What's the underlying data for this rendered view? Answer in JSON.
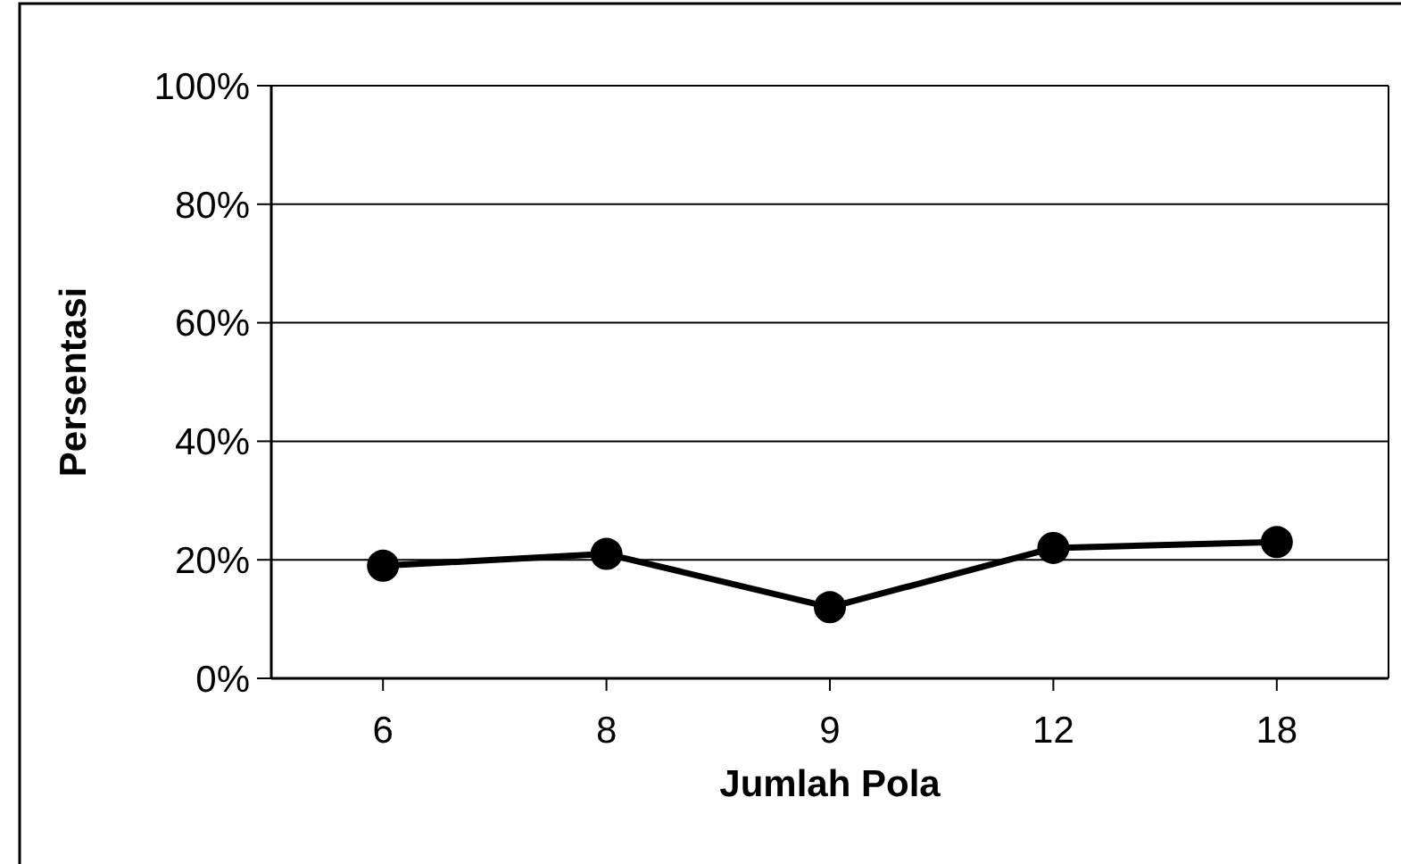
{
  "chart_data": {
    "type": "line",
    "xlabel": "Jumlah Pola",
    "ylabel": "Persentasi",
    "categories": [
      "6",
      "8",
      "9",
      "12",
      "18"
    ],
    "series": [
      {
        "color": "#000000",
        "values": [
          19,
          21,
          12,
          22,
          23
        ]
      }
    ],
    "ylim": [
      0,
      100
    ],
    "yticks": [
      {
        "value": 0,
        "label": "0%"
      },
      {
        "value": 20,
        "label": "20%"
      },
      {
        "value": 40,
        "label": "40%"
      },
      {
        "value": 60,
        "label": "60%"
      },
      {
        "value": 80,
        "label": "80%"
      },
      {
        "value": 100,
        "label": "100%"
      }
    ],
    "grid": "y",
    "marker": "circle",
    "line_style": "solid"
  }
}
